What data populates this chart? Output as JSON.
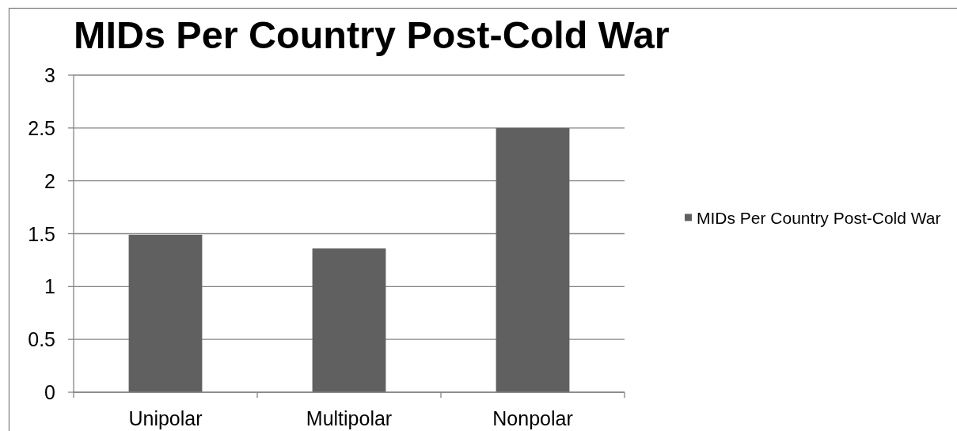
{
  "chart_data": {
    "type": "bar",
    "title": "MIDs Per Country Post-Cold War",
    "categories": [
      "Unipolar",
      "Multipolar",
      "Nonpolar"
    ],
    "series": [
      {
        "name": "MIDs Per Country Post-Cold War",
        "color": "#606060",
        "values": [
          1.49,
          1.36,
          2.5
        ]
      }
    ],
    "ylim": [
      0,
      3
    ],
    "yticks": [
      0,
      0.5,
      1,
      1.5,
      2,
      2.5,
      3
    ],
    "grid": "y",
    "legend": "right"
  }
}
